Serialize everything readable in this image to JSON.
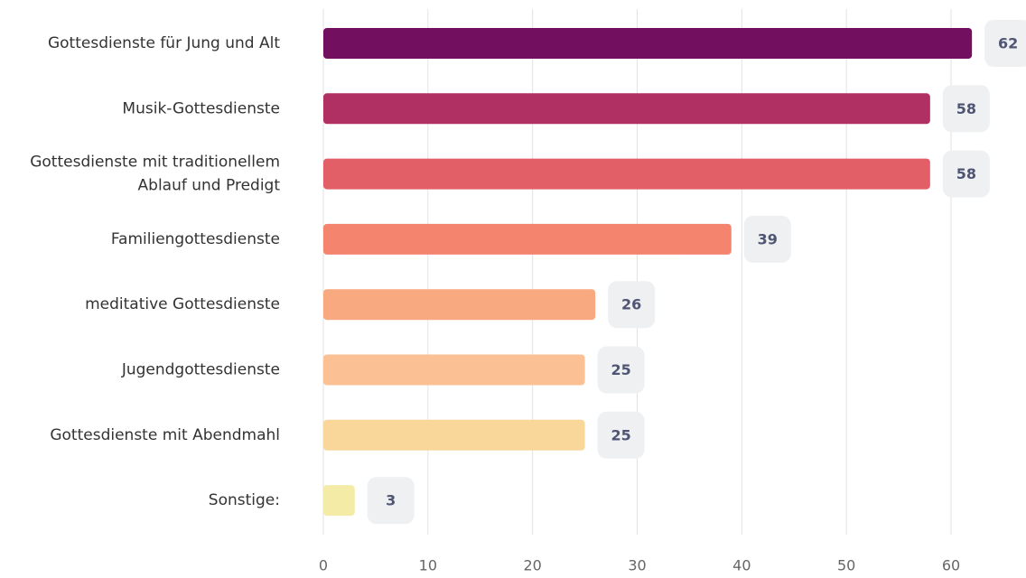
{
  "chart_data": {
    "type": "bar",
    "orientation": "horizontal",
    "categories": [
      "Gottesdienste für Jung und Alt",
      "Musik-Gottesdienste",
      "Gottesdienste mit traditionellem\nAblauf und Predigt",
      "Familiengottesdienste",
      "meditative Gottesdienste",
      "Jugendgottesdienste",
      "Gottesdienste mit Abendmahl",
      "Sonstige:"
    ],
    "values": [
      62,
      58,
      58,
      39,
      26,
      25,
      25,
      3
    ],
    "colors": [
      "#730f5f",
      "#b03064",
      "#e35f67",
      "#f4846e",
      "#f8a97f",
      "#fbc195",
      "#f9d69a",
      "#f4eca6"
    ],
    "xlim": [
      0,
      67
    ],
    "xticks": [
      0,
      10,
      20,
      30,
      40,
      50,
      60
    ],
    "grid": true
  }
}
